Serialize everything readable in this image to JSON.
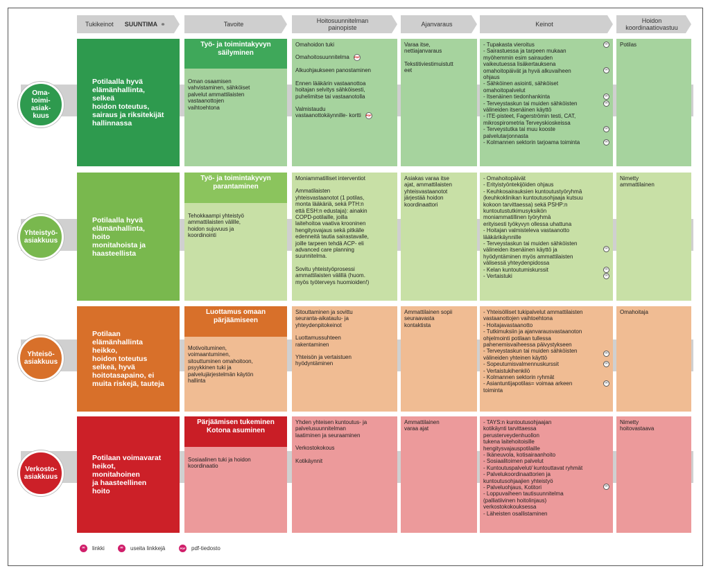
{
  "headers": {
    "tukikeinot": "Tukikeinot",
    "suuntima": "SUUNTIMA",
    "tavoite": "Tavoite",
    "painopiste": "Hoitosuunnitelman\npainopiste",
    "ajanvaraus": "Ajanvaraus",
    "keinot": "Keinot",
    "vastuu": "Hoidon\nkoordinaatiovastuu"
  },
  "colors": {
    "green_dark": "#2e9a4e",
    "green_mid": "#a6d39e",
    "lime_dark": "#79b84e",
    "lime_light": "#c8e0a6",
    "orange_dark": "#d8702a",
    "orange_light": "#f0bc93",
    "red_dark": "#cc2028",
    "red_light": "#ec9a9b"
  },
  "rows": [
    {
      "circle": "Oma-\ntoimi-\nasiak-\nkuus",
      "main": "Potilaalla hyvä\nelämänhallinta, selkeä\nhoidon toteutus,\nsairaus ja riksitekijät\nhallinnassa",
      "goal_title": "Työ- ja toimintakyvyn\nsäilyminen",
      "goal_body": "Oman osaamisen\nvahvistaminen, sähköiset\npalvelut ammattilaisten\nvastaanottojen\nvaihtoehtona",
      "focus": [
        "Omahoidon tuki",
        "Omahoitosuunnitelma",
        "Alkuohjaukseen panostaminen",
        "Ennen lääkärin vastaanottoa\nhoitajan selvitys sähköisesti,\npuhelimitse tai vastaanotolla",
        "Valmistaudu\nvastaanottokäynnille- kortti"
      ],
      "booking": [
        "Varaa itse,\nnettiajanvaraus",
        "Tekstitiviestimuistutt\neet"
      ],
      "means": [
        "- Tupakasta vieroitus",
        "- Sairastuessa ja tarpeen mukaan\n  myöhemmin esim sairauden\n  vaikeutuessa lisäkertauksena\n  omahoitopäivät ja hyvä alkuvaiheen\n  ohjaus",
        "- Sähköinen asiointi, sähköiset\n  omahoitopalvelut",
        "- Itsenäinen tiedonhankinta",
        "- Terveystaskun tai muiden sähköisten\n  välineiden itsenäinen käyttö",
        "- ITE-pisteet, Fagerströmin testi, CAT,\n  mikrospirometria Terveyskioskeissa",
        "- Terveystutka tai muu kooste\n  palvelutarjonnasta",
        "- Kolmannen sektorin tarjoama toiminta"
      ],
      "coord": "Potilas"
    },
    {
      "circle": "Yhteistyö-\nasiakkuus",
      "main": "Potilaalla hyvä\nelämänhallinta, hoito\nmonitahoista ja\nhaasteellista",
      "goal_title": "Työ- ja toimintakyvyn\nparantaminen",
      "goal_body": "Tehokkaampi yhteistyö\nammattilaisten välille,\nhoidon sujuvuus ja\nkoordinointi",
      "focus": [
        "Moniammatilliset interventiot",
        "Ammatilaisten\nyhteisvastaanotot (1 potilas,\nmonta lääkäriä, sekä PTH:n\nettä ESH:n edustaja): ainakin\nCOPD-potilaille, joilla\nlaitehoitoa vaativa krooninen\nhengitysvajaus sekä pitkälle\nedenneitä tautia sairastavalle,\njoille tarpeen tehdä ACP- eli\nadvanced care planning\nsuunnitelma.",
        "Sovitu yhteistyöprosessi\nammattilaisten välillä (huom.\nmyös työterveys huomioiden!)"
      ],
      "booking": [
        "Asiakas varaa itse\najat, ammattilaisten\nyhteisvastaanotot\njärjestää hoidon\nkoordinaattori"
      ],
      "means": [
        "- Omahoitopäivät",
        "- Erityistyöntekijöiden ohjaus",
        "- Keuhkosairauksien kuntoutustyöryhmä\n  (keuhkoklinikan kuntoutusohjaaja kutsuu\n  kokoon tarvittaessa) sekä PSHP:n\n  kuntoutustutkimusyksikön\n  moniammatillinen työryhmä\n  erityisesti työkyvyn ollessa uhattuna",
        "- Hoitajan valmisteleva vastaanotto\n  lääkärikäynnille",
        "- Terveystaskun tai muiden sähköisten\n  välineiden itsenäinen käyttö ja\n  hyödyntäminen myös ammattilaisten\n  välisessä yhteydenpidossa",
        "- Kelan kuntoutumiskurssit",
        "- Vertaistuki"
      ],
      "coord": "Nimetty\nammattilainen"
    },
    {
      "circle": "Yhteisö-\nasiakkuus",
      "main": "Potilaan\nelämänhallinta heikko,\nhoidon toteutus\nselkeä, hyvä\nhoitotasapaino, ei\nmuita riskejä, tauteja",
      "goal_title": "Luottamus omaan\npärjäämiseen",
      "goal_body": "Motivoituminen,\nvoimaantuminen,\nsitouttuminen omahoitoon,\npsyykkinen tuki ja\npalvelujärjestelmän käytön\nhallinta",
      "focus": [
        "Sitouttaminen ja sovittu\nseuranta-aikataulu- ja\nyhteydenpitokeinot",
        "Luottamussuhteen\nrakentaminen",
        "Yhteisön ja vertaistuen\nhyödyntäminen"
      ],
      "booking": [
        "Ammattilainen sopii\nseuraavasta\nkontaktista"
      ],
      "means": [
        "- Yhteisölliset tukipalvelut ammattilaisten\n  vastaanottojen vaihtoehtona",
        "- Hoitajavastaanotto",
        "- Tutkimuksiin ja ajanvarausvastaanoton\n  ohjelmointi potilaan tullessa\n  pahenemisvaiheessa päivystykseen",
        "- Terveystaskun tai muiden sähköisten\n  välineiden yhteinen käyttö",
        "- Sopeutumisvalmennuskurssit",
        "- Vertaistukihenkilö",
        "- Kolmannen sektorin ryhmät",
        "- Asiantuntijapotilas= voimaa arkeen\n  toiminta"
      ],
      "coord": "Omahoitaja"
    },
    {
      "circle": "Verkosto-\nasiakkuus",
      "main": "Potilaan voimavarat\nheikot, monitahoinen\nja haasteellinen hoito",
      "goal_title": "Pärjäämisen tukeminen\nKotona asuminen",
      "goal_body": "Sosiaalinen tuki ja hoidon\nkoordinaatio",
      "focus": [
        "Yhden yhteisen kuntoutus- ja\npalvelusuunnitelman\nlaatiminen ja seuraaminen",
        "Verkostokokous",
        "Kotikäynnit"
      ],
      "booking": [
        "Ammattilainen\nvaraa ajat"
      ],
      "means": [
        "- TAYS:n kuntoutusohjaajan\n  kotikäynti tarvittaessa\n  perusterveydenhuollon\n  tukena laitehoitoisille\n  hengitysvajauspotilaille",
        "- Ikäneuvola, kotisairaanhoito",
        "- Sosiaalitoimen palvelut",
        "- Kuntoutuspalvelut/ kuntouttavat ryhmät",
        "- Palvelukoordinaattorien ja\n  kuntoutusohjaajien yhteistyö",
        "- Palveluohjaus, Kotitori",
        "- Loppuvaiheen tautisuunnitelma\n  (palliatiivinen hoitolinjaus)\n  verkostokokouksessa",
        "- Läheisten osallistaminen"
      ],
      "coord": "Nimetty\nhoitovastaava"
    }
  ],
  "legend": {
    "link": "linkki",
    "links": "useita linkkejä",
    "pdf": "pdf-tiedosto",
    "pdf_badge": "PDF"
  }
}
